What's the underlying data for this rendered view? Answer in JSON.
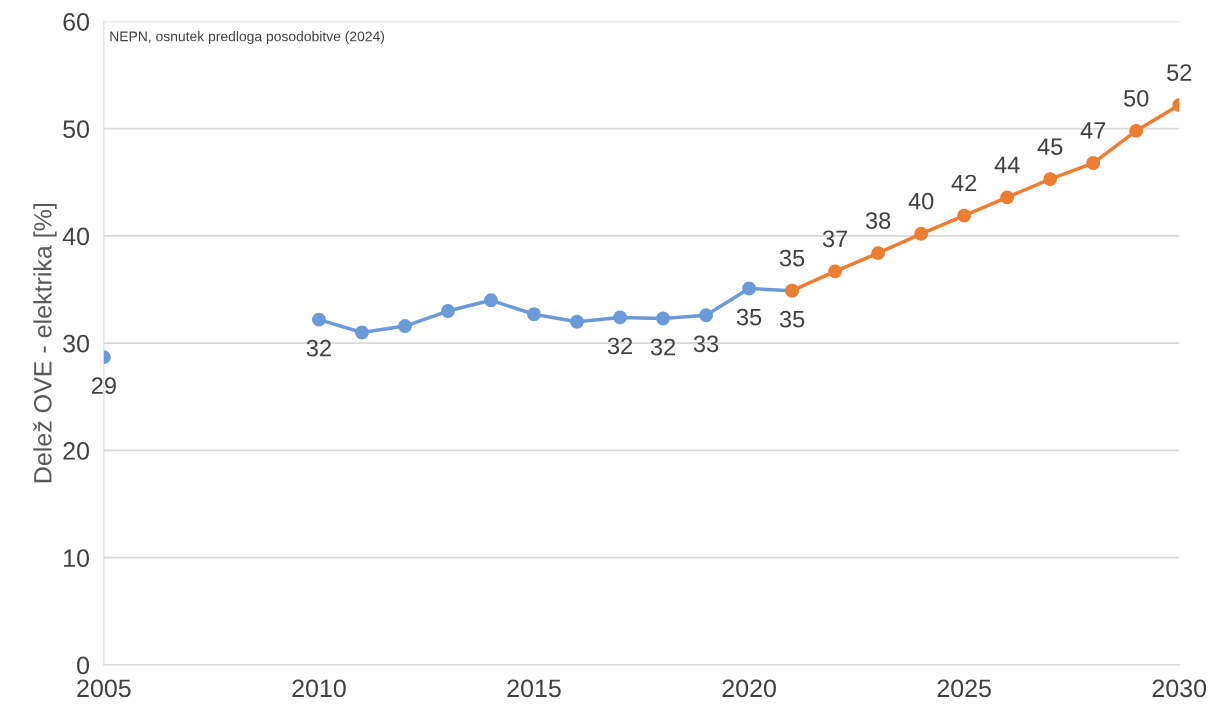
{
  "chart_data": {
    "type": "line",
    "ylabel": "Delež OVE - elektrika [%]",
    "annotations": [
      "NEPN, osnutek predloga posodobitve (2024)"
    ],
    "series": [
      {
        "color": "#6a9bd8",
        "x": [
          2005,
          2006,
          2007,
          2008,
          2009,
          2010,
          2011,
          2012,
          2013,
          2014,
          2015,
          2016,
          2017,
          2018,
          2019,
          2020,
          2021
        ],
        "values": [
          28.7,
          null,
          null,
          null,
          null,
          32.2,
          31.0,
          31.6,
          33.0,
          34.0,
          32.7,
          32.0,
          32.4,
          32.3,
          32.6,
          35.1,
          34.9
        ],
        "value_labels": [
          "29",
          null,
          null,
          null,
          null,
          "32",
          null,
          null,
          null,
          null,
          null,
          null,
          "32",
          "32",
          "33",
          "35",
          "35"
        ]
      },
      {
        "color": "#ed7d31",
        "x": [
          2021,
          2022,
          2023,
          2024,
          2025,
          2026,
          2027,
          2028,
          2029,
          2030
        ],
        "values": [
          34.9,
          36.7,
          38.4,
          40.2,
          41.9,
          43.6,
          45.3,
          46.8,
          49.8,
          52.2
        ],
        "value_labels": [
          "35",
          "37",
          "38",
          "40",
          "42",
          "44",
          "45",
          "47",
          "50",
          "52"
        ]
      }
    ],
    "xlim": [
      2005,
      2030
    ],
    "xticks": [
      2005,
      2010,
      2015,
      2020,
      2025,
      2030
    ],
    "ylim": [
      0,
      60
    ],
    "yticks": [
      0,
      10,
      20,
      30,
      40,
      50,
      60
    ],
    "grid": "y",
    "marker": "circle",
    "line_style": "solid"
  }
}
